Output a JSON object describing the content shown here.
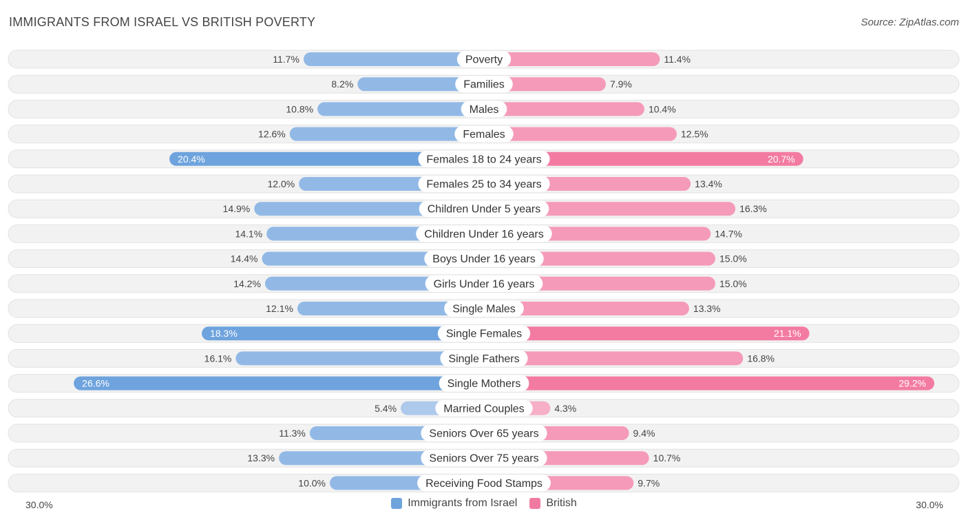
{
  "title": "IMMIGRANTS FROM ISRAEL VS BRITISH POVERTY",
  "source": "Source: ZipAtlas.com",
  "axis": {
    "left_label": "30.0%",
    "right_label": "30.0%"
  },
  "legend": {
    "left": {
      "label": "Immigrants from Israel",
      "color": "#6fa3dc"
    },
    "right": {
      "label": "British",
      "color": "#f07aa0"
    }
  },
  "chart_data": {
    "type": "bar",
    "orientation": "horizontal-diverging",
    "title": "IMMIGRANTS FROM ISRAEL VS BRITISH POVERTY",
    "unit": "%",
    "xlim": [
      0,
      30
    ],
    "categories": [
      "Poverty",
      "Families",
      "Males",
      "Females",
      "Females 18 to 24 years",
      "Females 25 to 34 years",
      "Children Under 5 years",
      "Children Under 16 years",
      "Boys Under 16 years",
      "Girls Under 16 years",
      "Single Males",
      "Single Females",
      "Single Fathers",
      "Single Mothers",
      "Married Couples",
      "Seniors Over 65 years",
      "Seniors Over 75 years",
      "Receiving Food Stamps"
    ],
    "series": [
      {
        "name": "Immigrants from Israel",
        "values": [
          11.7,
          8.2,
          10.8,
          12.6,
          20.4,
          12.0,
          14.9,
          14.1,
          14.4,
          14.2,
          12.1,
          18.3,
          16.1,
          26.6,
          5.4,
          11.3,
          13.3,
          10.0
        ],
        "labels": [
          "11.7%",
          "8.2%",
          "10.8%",
          "12.6%",
          "20.4%",
          "12.0%",
          "14.9%",
          "14.1%",
          "14.4%",
          "14.2%",
          "12.1%",
          "18.3%",
          "16.1%",
          "26.6%",
          "5.4%",
          "11.3%",
          "13.3%",
          "10.0%"
        ]
      },
      {
        "name": "British",
        "values": [
          11.4,
          7.9,
          10.4,
          12.5,
          20.7,
          13.4,
          16.3,
          14.7,
          15.0,
          15.0,
          13.3,
          21.1,
          16.8,
          29.2,
          4.3,
          9.4,
          10.7,
          9.7
        ],
        "labels": [
          "11.4%",
          "7.9%",
          "10.4%",
          "12.5%",
          "20.7%",
          "13.4%",
          "16.3%",
          "14.7%",
          "15.0%",
          "15.0%",
          "13.3%",
          "21.1%",
          "16.8%",
          "29.2%",
          "4.3%",
          "9.4%",
          "10.7%",
          "9.7%"
        ]
      }
    ]
  }
}
